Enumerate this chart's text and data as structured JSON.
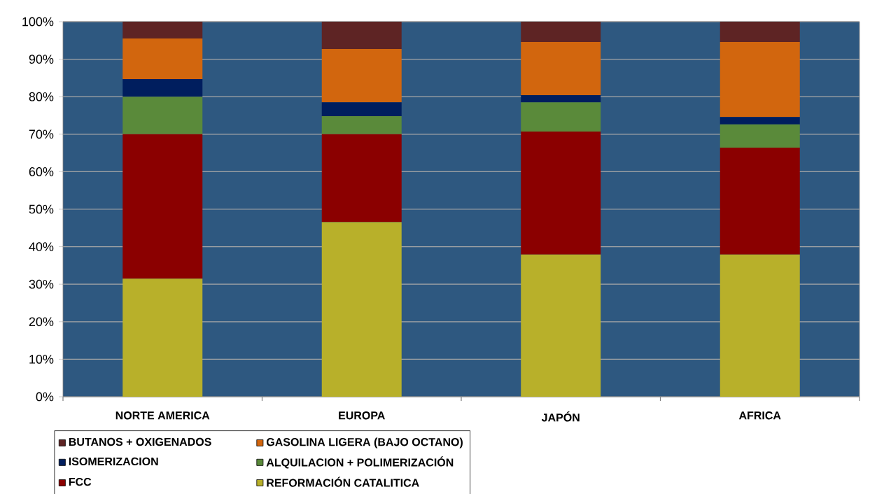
{
  "chart_data": {
    "type": "bar",
    "stacked": true,
    "categories": [
      "NORTE AMERICA",
      "EUROPA",
      "JAPÓN",
      "AFRICA"
    ],
    "series": [
      {
        "name": "REFORMACIÓN CATALITICA",
        "color": "#b8b02a",
        "values": [
          31.5,
          46.6,
          37.9,
          37.9
        ]
      },
      {
        "name": "FCC",
        "color": "#8b0000",
        "values": [
          38.5,
          23.4,
          32.8,
          28.5
        ]
      },
      {
        "name": "ALQUILACION + POLIMERIZACIÓN",
        "color": "#5a8a3a",
        "values": [
          10,
          4.8,
          7.8,
          6.2
        ]
      },
      {
        "name": "ISOMERIZACION",
        "color": "#001e5e",
        "values": [
          4.7,
          3.7,
          1.9,
          2.0
        ]
      },
      {
        "name": "GASOLINA LIGERA (BAJO OCTANO)",
        "color": "#d2660e",
        "values": [
          10.8,
          14.2,
          14.2,
          20.0
        ]
      },
      {
        "name": "BUTANOS + OXIGENADOS",
        "color": "#5e2424",
        "values": [
          4.5,
          7.3,
          5.4,
          5.4
        ]
      }
    ],
    "ylim": [
      0,
      100
    ],
    "yticks": [
      {
        "value": 0,
        "label": "0%"
      },
      {
        "value": 10,
        "label": "10%"
      },
      {
        "value": 20,
        "label": "20%"
      },
      {
        "value": 30,
        "label": "30%"
      },
      {
        "value": 40,
        "label": "40%"
      },
      {
        "value": 50,
        "label": "50%"
      },
      {
        "value": 60,
        "label": "60%"
      },
      {
        "value": 70,
        "label": "70%"
      },
      {
        "value": 80,
        "label": "80%"
      },
      {
        "value": 90,
        "label": "90%"
      },
      {
        "value": 100,
        "label": "100%"
      }
    ],
    "grid": "y",
    "legend": "bottom"
  }
}
